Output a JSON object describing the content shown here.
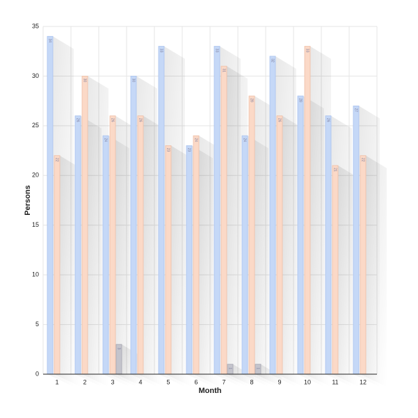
{
  "chart_data": {
    "type": "bar",
    "x_label": "Month",
    "y_label": "Persons",
    "categories": [
      "1",
      "2",
      "3",
      "4",
      "5",
      "6",
      "7",
      "8",
      "9",
      "10",
      "11",
      "12"
    ],
    "series": [
      {
        "color": "#c5d8f7",
        "stroke": "#a9c2ee",
        "values": [
          34,
          26,
          24,
          30,
          33,
          23,
          33,
          24,
          32,
          28,
          26,
          27
        ]
      },
      {
        "color": "#fbd9c7",
        "stroke": "#efbfa6",
        "values": [
          22,
          30,
          26,
          26,
          23,
          24,
          31,
          28,
          26,
          33,
          21,
          22
        ]
      },
      {
        "color": "#c4c4cc",
        "stroke": "#a8a8b2",
        "values": [
          null,
          null,
          3,
          null,
          null,
          null,
          1,
          1,
          null,
          null,
          null,
          null
        ]
      }
    ],
    "ylim": [
      0,
      35
    ],
    "yticks": [
      0,
      5,
      10,
      15,
      20,
      25,
      30,
      35
    ],
    "grid": true
  }
}
